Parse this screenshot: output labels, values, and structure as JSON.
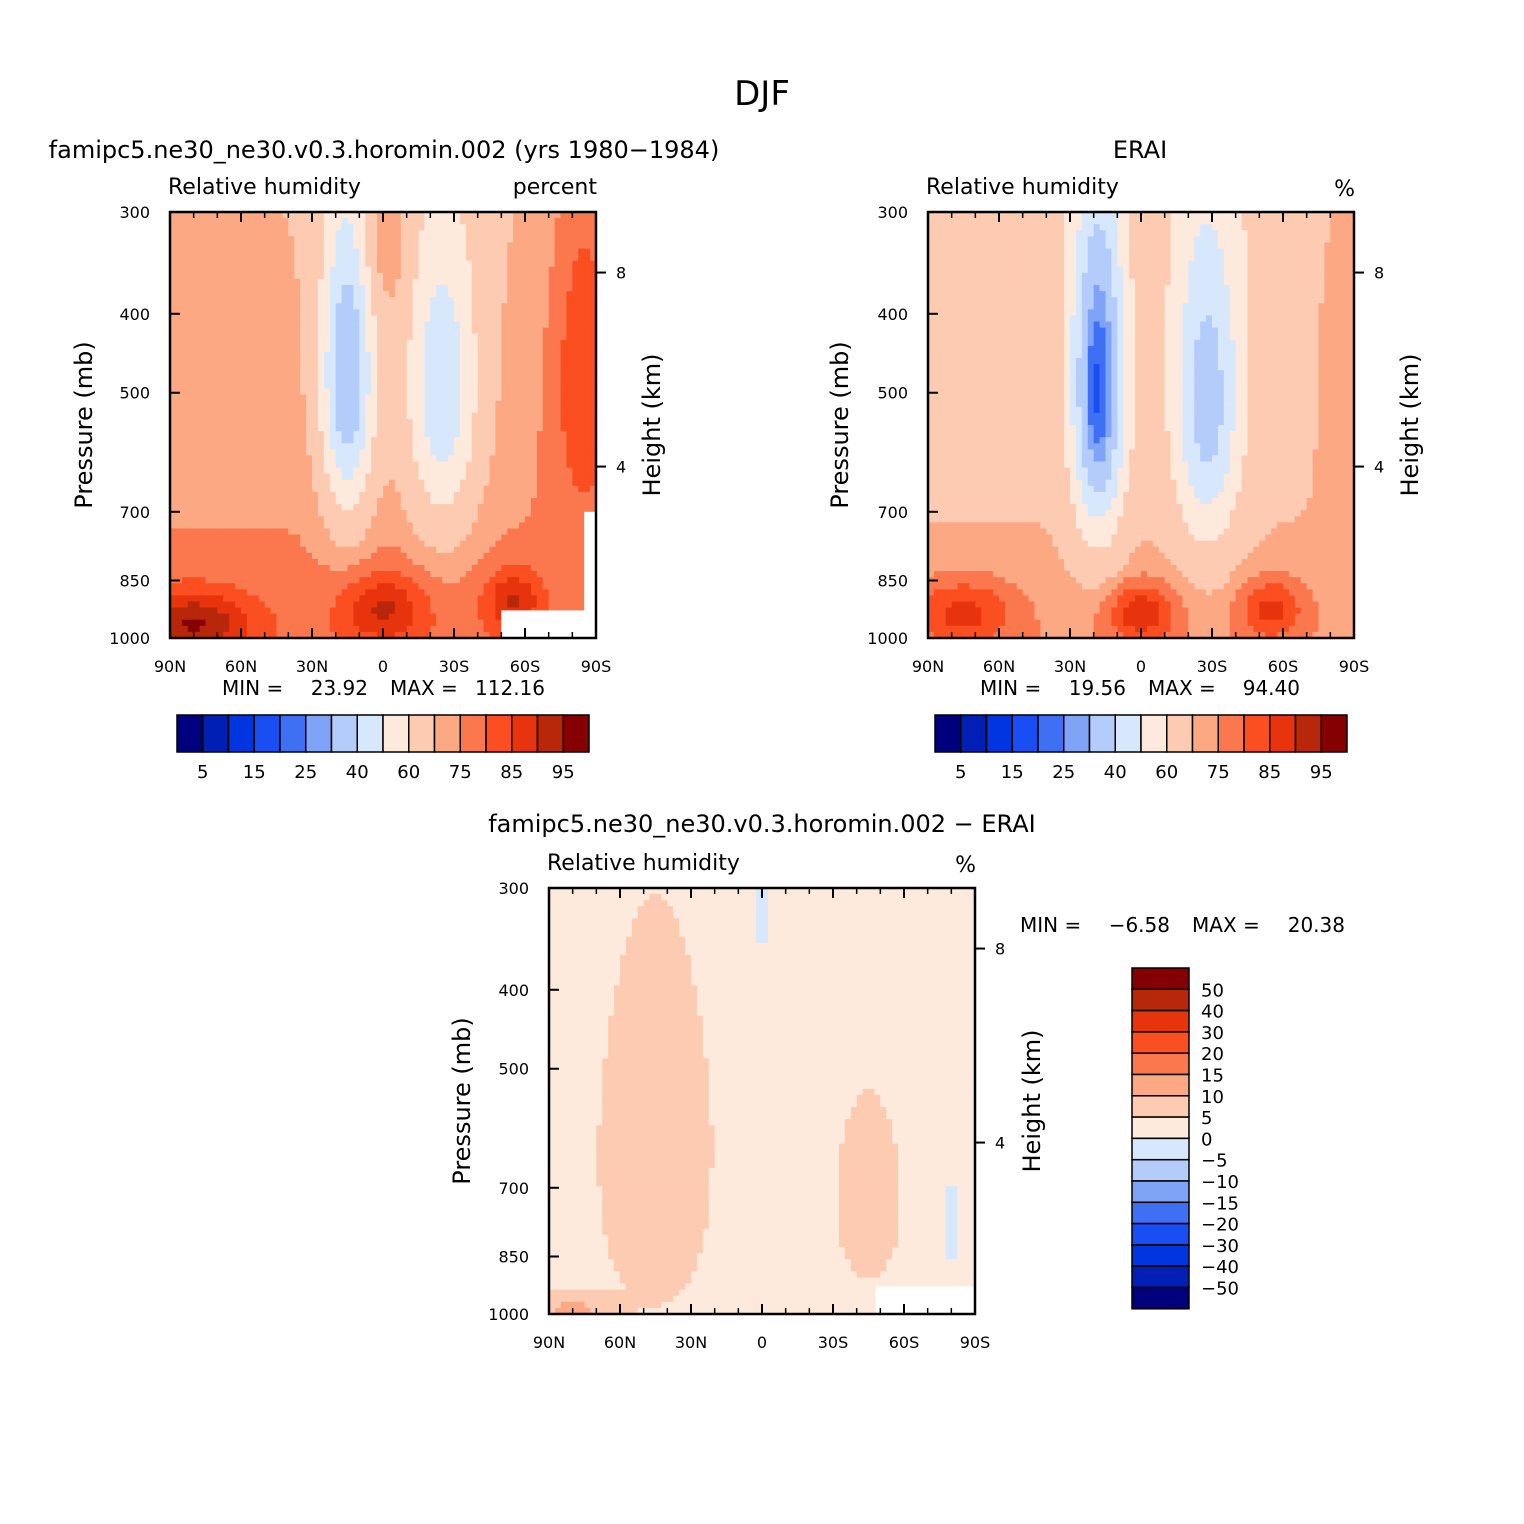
{
  "page_title": "DJF",
  "palette_abs": [
    "#00007f",
    "#0020b5",
    "#0035e0",
    "#1a4ef5",
    "#3f6ff2",
    "#7fa4f7",
    "#b3ccfa",
    "#d7e7fc",
    "#feeadc",
    "#fdcbb1",
    "#fca882",
    "#fb784f",
    "#fb4f21",
    "#e7340c",
    "#b82709",
    "#850000"
  ],
  "palette_diff": [
    "#850000",
    "#b82709",
    "#e7340c",
    "#fb4f21",
    "#fb784f",
    "#fca882",
    "#fdcbb1",
    "#feeadc",
    "#d7e7fc",
    "#b3ccfa",
    "#7fa4f7",
    "#3f6ff2",
    "#1a4ef5",
    "#0035e0",
    "#0020b5",
    "#00007f"
  ],
  "chart_data": [
    {
      "type": "heatmap",
      "title": "famipc5.ne30_ne30.v0.3.horomin.002 (yrs 1980−1984)",
      "subtitle_left": "Relative humidity",
      "subtitle_right": "percent",
      "ylabel": "Pressure (mb)",
      "ylabel_right": "Height (km)",
      "x_ticks": [
        "90N",
        "60N",
        "30N",
        "0",
        "30S",
        "60S",
        "90S"
      ],
      "y_ticks": [
        "300",
        "400",
        "500",
        "700",
        "850",
        "1000"
      ],
      "height_ticks": [
        "8",
        "4"
      ],
      "stats": {
        "min_label": "MIN =",
        "min": "23.92",
        "max_label": "MAX =",
        "max": "112.16"
      },
      "colorbar_labels": [
        "5",
        "15",
        "25",
        "40",
        "60",
        "75",
        "85",
        "95"
      ],
      "levels": [
        5,
        10,
        15,
        20,
        25,
        30,
        40,
        50,
        60,
        70,
        75,
        80,
        85,
        90,
        95
      ],
      "x_range": [
        90,
        -90
      ],
      "y_range_mb": [
        300,
        1000
      ]
    },
    {
      "type": "heatmap",
      "title": "ERAI",
      "subtitle_left": "Relative humidity",
      "subtitle_right": "%",
      "ylabel": "Pressure (mb)",
      "ylabel_right": "Height (km)",
      "x_ticks": [
        "90N",
        "60N",
        "30N",
        "0",
        "30S",
        "60S",
        "90S"
      ],
      "y_ticks": [
        "300",
        "400",
        "500",
        "700",
        "850",
        "1000"
      ],
      "height_ticks": [
        "8",
        "4"
      ],
      "stats": {
        "min_label": "MIN =",
        "min": "19.56",
        "max_label": "MAX =",
        "max": "94.40"
      },
      "colorbar_labels": [
        "5",
        "15",
        "25",
        "40",
        "60",
        "75",
        "85",
        "95"
      ],
      "levels": [
        5,
        10,
        15,
        20,
        25,
        30,
        40,
        50,
        60,
        70,
        75,
        80,
        85,
        90,
        95
      ],
      "x_range": [
        90,
        -90
      ],
      "y_range_mb": [
        300,
        1000
      ]
    },
    {
      "type": "heatmap",
      "title": "famipc5.ne30_ne30.v0.3.horomin.002 − ERAI",
      "subtitle_left": "Relative humidity",
      "subtitle_right": "%",
      "ylabel": "Pressure (mb)",
      "ylabel_right": "Height (km)",
      "x_ticks": [
        "90N",
        "60N",
        "30N",
        "0",
        "30S",
        "60S",
        "90S"
      ],
      "y_ticks": [
        "300",
        "400",
        "500",
        "700",
        "850",
        "1000"
      ],
      "height_ticks": [
        "8",
        "4"
      ],
      "stats": {
        "min_label": "MIN =",
        "min": "−6.58",
        "max_label": "MAX =",
        "max": "20.38"
      },
      "colorbar_labels": [
        "50",
        "40",
        "30",
        "20",
        "15",
        "10",
        "5",
        "0",
        "−5",
        "−10",
        "−15",
        "−20",
        "−30",
        "−40",
        "−50"
      ],
      "levels": [
        50,
        40,
        30,
        20,
        15,
        10,
        5,
        0,
        -5,
        -10,
        -15,
        -20,
        -30,
        -40,
        -50
      ],
      "x_range": [
        90,
        -90
      ],
      "y_range_mb": [
        300,
        1000
      ]
    }
  ]
}
